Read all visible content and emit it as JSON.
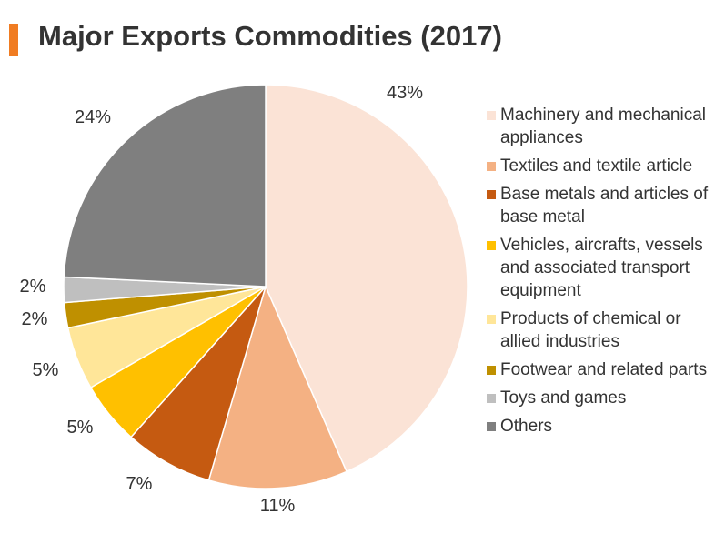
{
  "title": "Major Exports Commodities (2017)",
  "accent_color": "#f07c22",
  "chart_data": {
    "type": "pie",
    "title": "Major Exports Commodities (2017)",
    "slices": [
      {
        "label": "Machinery and mechanical appliances",
        "value": 43,
        "value_label": "43%",
        "color": "#fbe3d6"
      },
      {
        "label": "Textiles and textile article",
        "value": 11,
        "value_label": "11%",
        "color": "#f4b183"
      },
      {
        "label": "Base metals and articles of base metal",
        "value": 7,
        "value_label": "7%",
        "color": "#c55a11"
      },
      {
        "label": "Vehicles, aircrafts, vessels and associated transport equipment",
        "value": 5,
        "value_label": "5%",
        "color": "#ffc000"
      },
      {
        "label": "Products of chemical or allied industries",
        "value": 5,
        "value_label": "5%",
        "color": "#ffe699"
      },
      {
        "label": "Footwear and related parts",
        "value": 2,
        "value_label": "2%",
        "color": "#bf9000"
      },
      {
        "label": "Toys and games",
        "value": 2,
        "value_label": "2%",
        "color": "#bfbfbf"
      },
      {
        "label": "Others",
        "value": 24,
        "value_label": "24%",
        "color": "#7f7f7f"
      }
    ],
    "legend_position": "right"
  }
}
